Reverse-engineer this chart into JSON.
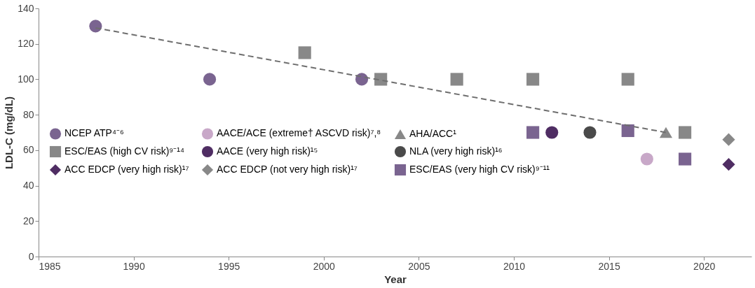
{
  "chart_data": {
    "type": "scatter",
    "xlabel": "Year",
    "ylabel": "LDL-C (mg/dL)",
    "xlim": [
      1985,
      2022.5
    ],
    "xticks": [
      1985,
      1990,
      1995,
      2000,
      2005,
      2010,
      2015,
      2020
    ],
    "ylim": [
      0,
      140
    ],
    "yticks": [
      0,
      20,
      40,
      60,
      80,
      100,
      120,
      140
    ],
    "grid": false,
    "legend": "bottom left",
    "series": [
      {
        "name": "NCEP ATP⁴⁻⁶",
        "color": "#7a6490",
        "marker": "circle",
        "x": [
          1988,
          1994,
          2002
        ],
        "values": [
          130,
          100,
          100
        ]
      },
      {
        "name": "ESC/EAS (high CV risk)⁹⁻¹⁴",
        "color": "#888888",
        "marker": "square",
        "x": [
          1999,
          2003,
          2007,
          2011,
          2016,
          2019
        ],
        "values": [
          115,
          100,
          100,
          100,
          100,
          70
        ]
      },
      {
        "name": "ACC EDCP (very high risk)¹⁷",
        "color": "#4f2d63",
        "marker": "diamond",
        "x": [
          2021.3
        ],
        "values": [
          52
        ]
      },
      {
        "name": "AACE/ACE (extreme† ASCVD risk)⁷,⁸",
        "color": "#c8a8c8",
        "marker": "circle",
        "x": [
          2017
        ],
        "values": [
          55
        ]
      },
      {
        "name": "AACE (very high risk)¹⁵",
        "color": "#4f2d63",
        "marker": "circle",
        "x": [
          2012
        ],
        "values": [
          70
        ]
      },
      {
        "name": "ACC EDCP (not very high risk)¹⁷",
        "color": "#888888",
        "marker": "diamond",
        "x": [
          2021.3
        ],
        "values": [
          66
        ]
      },
      {
        "name": "AHA/ACC¹",
        "color": "#888888",
        "marker": "triangle",
        "x": [
          2018
        ],
        "values": [
          70
        ]
      },
      {
        "name": "NLA (very high risk)¹⁶",
        "color": "#4a4a4a",
        "marker": "circle",
        "x": [
          2014
        ],
        "values": [
          70
        ]
      },
      {
        "name": "ESC/EAS (very high CV risk)⁹⁻¹¹",
        "color": "#7a6490",
        "marker": "square",
        "x": [
          2011,
          2016,
          2019
        ],
        "values": [
          70,
          71,
          55
        ]
      },
      {
        "type": "line",
        "color": "#6e6e6e",
        "line_style": "dashed",
        "marker": "none",
        "x": [
          1988,
          2018
        ],
        "values": [
          129,
          70
        ]
      }
    ]
  }
}
